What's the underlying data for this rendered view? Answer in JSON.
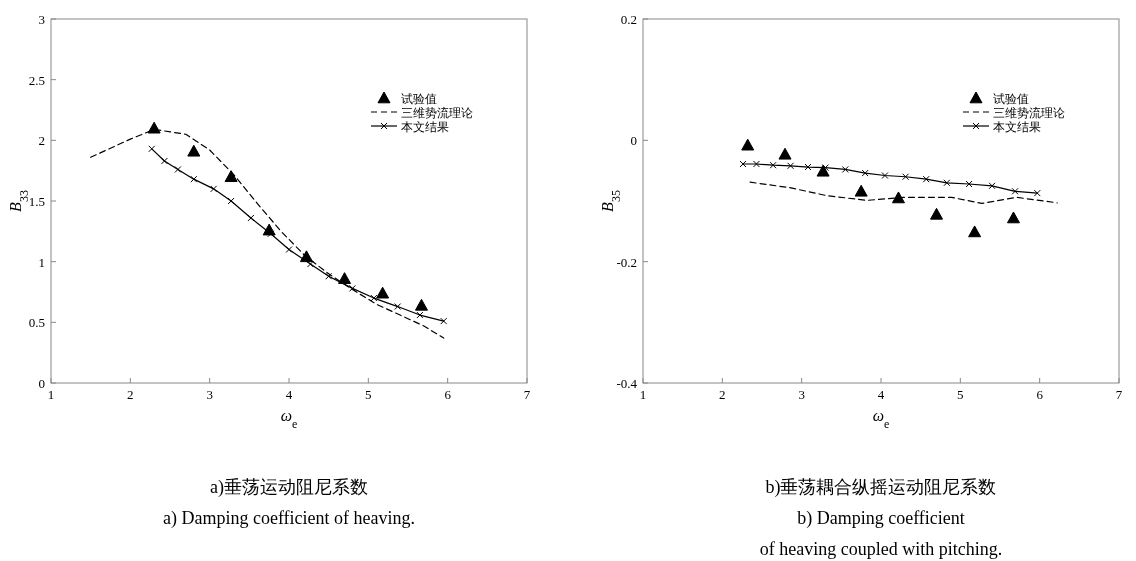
{
  "chart_data": [
    {
      "type": "line",
      "xlabel": "ω$_{e}$",
      "ylabel": "B$_{33}$",
      "xlim": [
        1,
        7
      ],
      "ylim": [
        0,
        3
      ],
      "xticks": [
        1,
        2,
        3,
        4,
        5,
        6,
        7
      ],
      "yticks": [
        0,
        0.5,
        1,
        1.5,
        2,
        2.5,
        3
      ],
      "legend": "top right",
      "annotations": [
        "a)垂荡运动阻尼系数",
        "a) Damping coefficient of heaving."
      ],
      "series": [
        {
          "name": "试验值",
          "type": "scatter",
          "marker": "triangle",
          "color": "#000000",
          "x": [
            2.3,
            2.8,
            3.27,
            3.75,
            4.22,
            4.7,
            5.18,
            5.67
          ],
          "values": [
            2.1,
            1.91,
            1.7,
            1.26,
            1.04,
            0.86,
            0.74,
            0.64
          ]
        },
        {
          "name": "三维势流理论",
          "line_style": "dashed",
          "marker": "none",
          "color": "#000000",
          "x": [
            1.5,
            1.8,
            2.0,
            2.3,
            2.7,
            3.0,
            3.3,
            3.6,
            3.9,
            4.2,
            4.5,
            4.8,
            5.1,
            5.4,
            5.7,
            5.95
          ],
          "values": [
            1.86,
            1.95,
            2.01,
            2.09,
            2.05,
            1.92,
            1.72,
            1.48,
            1.25,
            1.05,
            0.9,
            0.77,
            0.65,
            0.56,
            0.47,
            0.37
          ]
        },
        {
          "name": "本文结果",
          "line_style": "solid",
          "marker": "cross",
          "color": "#000000",
          "x": [
            2.27,
            2.43,
            2.6,
            2.8,
            3.05,
            3.27,
            3.52,
            3.77,
            4.0,
            4.27,
            4.5,
            4.8,
            5.07,
            5.37,
            5.65,
            5.95
          ],
          "values": [
            1.93,
            1.83,
            1.76,
            1.68,
            1.6,
            1.5,
            1.36,
            1.23,
            1.1,
            0.98,
            0.88,
            0.78,
            0.7,
            0.63,
            0.56,
            0.51
          ]
        }
      ]
    },
    {
      "type": "line",
      "xlabel": "ω$_{e}$",
      "ylabel": "B$_{35}$",
      "xlim": [
        1,
        7
      ],
      "ylim": [
        -0.4,
        0.2
      ],
      "xticks": [
        1,
        2,
        3,
        4,
        5,
        6,
        7
      ],
      "yticks": [
        -0.4,
        -0.2,
        0,
        0.2
      ],
      "legend": "top right",
      "annotations": [
        "b)垂荡耦合纵摇运动阻尼系数",
        "b) Damping coefficient",
        "of heaving coupled with pitching."
      ],
      "series": [
        {
          "name": "试验值",
          "type": "scatter",
          "marker": "triangle",
          "color": "#000000",
          "x": [
            2.32,
            2.79,
            3.27,
            3.75,
            4.22,
            4.7,
            5.18,
            5.67
          ],
          "values": [
            -0.008,
            -0.023,
            -0.051,
            -0.084,
            -0.095,
            -0.122,
            -0.151,
            -0.128
          ]
        },
        {
          "name": "三维势流理论",
          "line_style": "dashed",
          "marker": "none",
          "color": "#000000",
          "x": [
            2.35,
            2.85,
            3.31,
            3.82,
            4.28,
            4.89,
            5.27,
            5.71,
            6.22
          ],
          "values": [
            -0.069,
            -0.078,
            -0.091,
            -0.099,
            -0.094,
            -0.094,
            -0.104,
            -0.094,
            -0.103
          ]
        },
        {
          "name": "本文结果",
          "line_style": "solid",
          "marker": "cross",
          "color": "#000000",
          "x": [
            2.26,
            2.43,
            2.64,
            2.86,
            3.08,
            3.3,
            3.55,
            3.8,
            4.05,
            4.31,
            4.57,
            4.83,
            5.11,
            5.4,
            5.69,
            5.97
          ],
          "values": [
            -0.039,
            -0.039,
            -0.041,
            -0.042,
            -0.044,
            -0.045,
            -0.048,
            -0.054,
            -0.058,
            -0.06,
            -0.064,
            -0.07,
            -0.072,
            -0.075,
            -0.084,
            -0.087
          ]
        }
      ]
    }
  ]
}
